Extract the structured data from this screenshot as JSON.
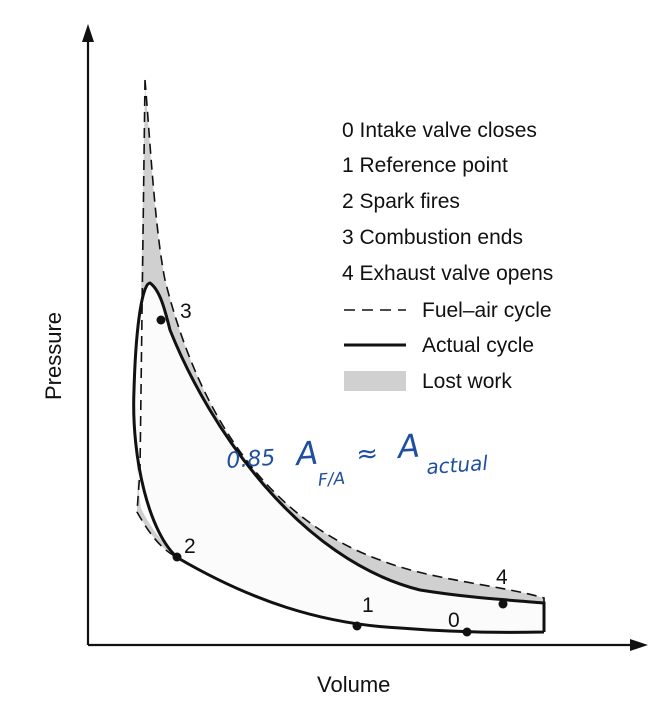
{
  "axes": {
    "x_label": "Volume",
    "y_label": "Pressure"
  },
  "legend": {
    "items": [
      "0 Intake valve closes",
      "1 Reference point",
      "2 Spark fires",
      "3 Combustion ends",
      "4 Exhaust valve opens"
    ],
    "fuel_air": "Fuel–air cycle",
    "actual": "Actual cycle",
    "lost": "Lost work"
  },
  "points": {
    "p0": "0",
    "p1": "1",
    "p2": "2",
    "p3": "3",
    "p4": "4"
  },
  "annotation": {
    "coef": "0.85",
    "a1": "A",
    "sub1": "F/A",
    "approx": "≈",
    "a2": "A",
    "sub2": "actual"
  },
  "colors": {
    "lost_work_fill": "#d0d0d0",
    "interior_fill": "#fbfbfb",
    "ink": "#111111",
    "handwriting": "#1f4fa0"
  }
}
